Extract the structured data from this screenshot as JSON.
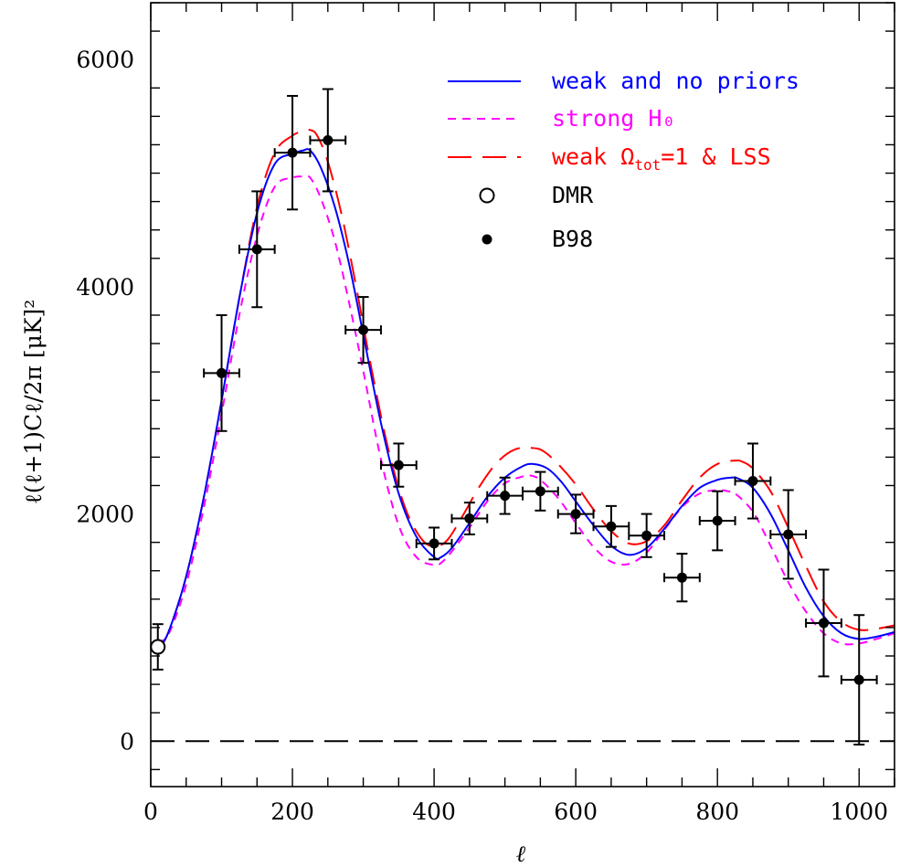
{
  "chart_data": {
    "type": "line",
    "xlabel": "ℓ",
    "ylabel": "ℓ(ℓ+1)Cℓ/2π   [μK]²",
    "xlim": [
      0,
      1050
    ],
    "ylim": [
      -400,
      6500
    ],
    "xticks": [
      0,
      200,
      400,
      600,
      800,
      1000
    ],
    "yticks": [
      0,
      2000,
      4000,
      6000
    ],
    "xtick_labels": [
      "0",
      "200",
      "400",
      "600",
      "800",
      "1000"
    ],
    "ytick_labels": [
      "0",
      "2000",
      "4000",
      "6000"
    ],
    "grid": false,
    "legend_position": "top-right",
    "zero_line": true,
    "series": [
      {
        "name": "weak and no priors",
        "color": "#0000ff",
        "dash": "solid",
        "x": [
          10,
          25,
          50,
          75,
          100,
          125,
          150,
          175,
          200,
          215,
          225,
          240,
          260,
          280,
          300,
          325,
          350,
          375,
          400,
          410,
          425,
          450,
          475,
          500,
          525,
          540,
          560,
          580,
          600,
          625,
          650,
          675,
          700,
          725,
          750,
          775,
          800,
          820,
          830,
          850,
          875,
          900,
          925,
          950,
          975,
          1000,
          1025,
          1050
        ],
        "y": [
          800,
          960,
          1450,
          2150,
          3000,
          3900,
          4650,
          5080,
          5170,
          5200,
          5200,
          5050,
          4700,
          4200,
          3580,
          2800,
          2180,
          1800,
          1620,
          1620,
          1700,
          1920,
          2150,
          2320,
          2420,
          2440,
          2400,
          2280,
          2110,
          1900,
          1720,
          1640,
          1700,
          1870,
          2070,
          2230,
          2300,
          2320,
          2310,
          2230,
          2000,
          1680,
          1350,
          1100,
          950,
          900,
          920,
          960
        ]
      },
      {
        "name": "strong H₀",
        "color": "#ff00ff",
        "dash": "short",
        "x": [
          10,
          25,
          50,
          75,
          100,
          125,
          150,
          175,
          200,
          215,
          225,
          240,
          260,
          280,
          300,
          325,
          350,
          375,
          400,
          410,
          425,
          450,
          475,
          500,
          525,
          535,
          550,
          575,
          600,
          625,
          650,
          675,
          700,
          725,
          750,
          775,
          800,
          815,
          825,
          850,
          875,
          900,
          925,
          950,
          975,
          1000,
          1025,
          1050
        ],
        "y": [
          880,
          940,
          1380,
          2060,
          2880,
          3750,
          4450,
          4880,
          4960,
          4970,
          4960,
          4780,
          4400,
          3860,
          3260,
          2480,
          1900,
          1620,
          1550,
          1570,
          1670,
          1880,
          2110,
          2270,
          2330,
          2340,
          2300,
          2140,
          1920,
          1710,
          1580,
          1560,
          1660,
          1860,
          2060,
          2180,
          2210,
          2200,
          2180,
          2020,
          1720,
          1400,
          1140,
          950,
          860,
          860,
          900,
          950
        ]
      },
      {
        "name": "weak Ω_tot=1 & LSS",
        "color": "#ff0000",
        "dash": "long",
        "x": [
          10,
          25,
          50,
          75,
          100,
          125,
          150,
          175,
          200,
          215,
          225,
          235,
          250,
          270,
          290,
          310,
          335,
          360,
          385,
          405,
          420,
          440,
          465,
          490,
          515,
          540,
          555,
          575,
          600,
          625,
          650,
          675,
          700,
          725,
          750,
          775,
          800,
          825,
          835,
          850,
          875,
          900,
          925,
          950,
          975,
          1000,
          1025,
          1050
        ],
        "y": [
          800,
          960,
          1450,
          2150,
          3000,
          3900,
          4700,
          5180,
          5330,
          5370,
          5380,
          5330,
          5100,
          4620,
          4000,
          3330,
          2580,
          2040,
          1760,
          1720,
          1780,
          1980,
          2250,
          2460,
          2570,
          2580,
          2550,
          2440,
          2260,
          2040,
          1850,
          1740,
          1760,
          1900,
          2120,
          2320,
          2440,
          2470,
          2460,
          2400,
          2200,
          1880,
          1540,
          1230,
          1050,
          980,
          990,
          1020
        ]
      }
    ],
    "points": [
      {
        "name": "DMR",
        "marker": "open-circle",
        "data": [
          {
            "x": 10,
            "y": 830,
            "yerr": 200,
            "xerr": 0
          }
        ]
      },
      {
        "name": "B98",
        "marker": "filled-circle",
        "data": [
          {
            "x": 100,
            "y": 3240,
            "yerr": 510,
            "xerr": 25
          },
          {
            "x": 150,
            "y": 4330,
            "yerr": 510,
            "xerr": 25
          },
          {
            "x": 200,
            "y": 5180,
            "yerr": 500,
            "xerr": 25
          },
          {
            "x": 250,
            "y": 5290,
            "yerr": 450,
            "xerr": 25
          },
          {
            "x": 300,
            "y": 3620,
            "yerr": 290,
            "xerr": 25
          },
          {
            "x": 350,
            "y": 2430,
            "yerr": 190,
            "xerr": 25
          },
          {
            "x": 400,
            "y": 1740,
            "yerr": 140,
            "xerr": 25
          },
          {
            "x": 450,
            "y": 1960,
            "yerr": 140,
            "xerr": 25
          },
          {
            "x": 500,
            "y": 2160,
            "yerr": 160,
            "xerr": 25
          },
          {
            "x": 550,
            "y": 2200,
            "yerr": 170,
            "xerr": 25
          },
          {
            "x": 600,
            "y": 2000,
            "yerr": 170,
            "xerr": 25
          },
          {
            "x": 650,
            "y": 1890,
            "yerr": 180,
            "xerr": 25
          },
          {
            "x": 700,
            "y": 1810,
            "yerr": 190,
            "xerr": 25
          },
          {
            "x": 750,
            "y": 1440,
            "yerr": 210,
            "xerr": 25
          },
          {
            "x": 800,
            "y": 1940,
            "yerr": 260,
            "xerr": 25
          },
          {
            "x": 850,
            "y": 2290,
            "yerr": 330,
            "xerr": 25
          },
          {
            "x": 900,
            "y": 1820,
            "yerr": 390,
            "xerr": 25
          },
          {
            "x": 950,
            "y": 1040,
            "yerr": 470,
            "xerr": 25
          },
          {
            "x": 1000,
            "y": 540,
            "yerr": 570,
            "xerr": 25
          }
        ]
      }
    ]
  },
  "legend": {
    "items": [
      {
        "label": "weak and no priors",
        "color": "#0000ff",
        "kind": "line-solid"
      },
      {
        "label": "strong H₀",
        "color": "#ff00ff",
        "kind": "line-short"
      },
      {
        "label": "weak Ω",
        "label_sub": "tot",
        "label_tail": "=1 & LSS",
        "color": "#ff0000",
        "kind": "line-long"
      },
      {
        "label": "DMR",
        "color": "#000000",
        "kind": "open-circle"
      },
      {
        "label": "B98",
        "color": "#000000",
        "kind": "filled-circle"
      }
    ]
  }
}
